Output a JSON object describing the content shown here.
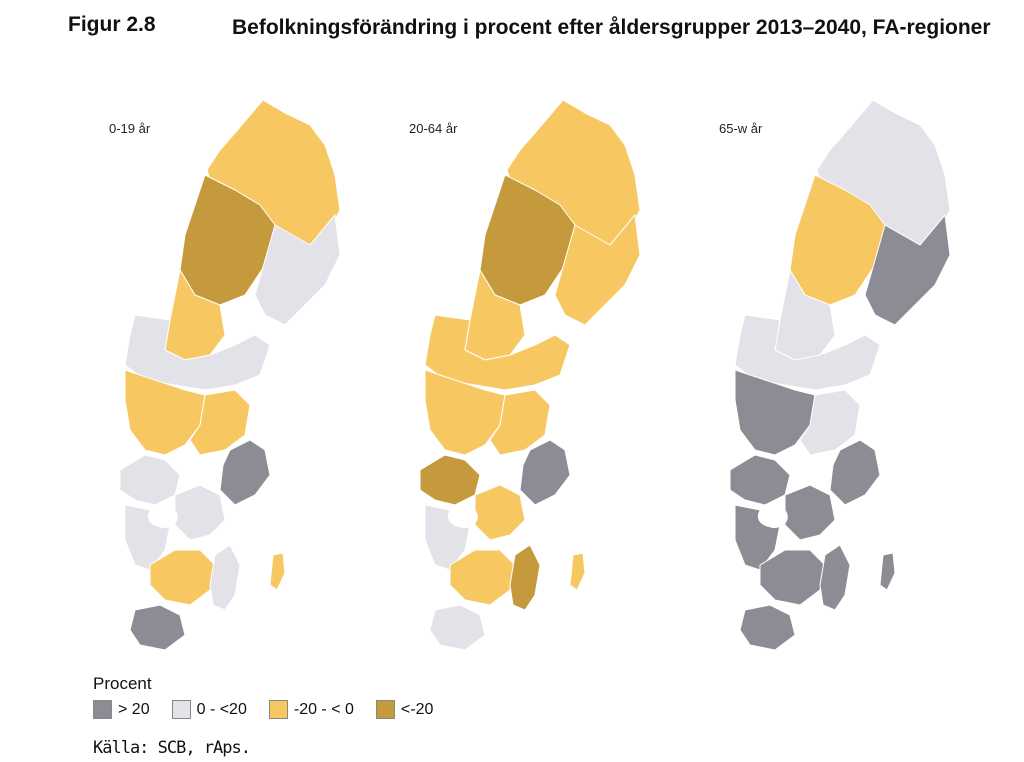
{
  "figure": {
    "number": "Figur 2.8",
    "title": "Befolkningsförändring i procent efter åldersgrupper 2013–2040, FA-regioner"
  },
  "maps": [
    {
      "label": "0-19 år"
    },
    {
      "label": "20-64 år"
    },
    {
      "label": "65-w år"
    }
  ],
  "legend": {
    "title": "Procent",
    "items": [
      {
        "label": "> 20",
        "color": "#8c8c94"
      },
      {
        "label": "0 - <20",
        "color": "#e2e2e8"
      },
      {
        "label": "-20 - < 0",
        "color": "#f7c862"
      },
      {
        "label": "<-20",
        "color": "#c49a3c"
      }
    ]
  },
  "source": "Källa: SCB, rAps."
}
